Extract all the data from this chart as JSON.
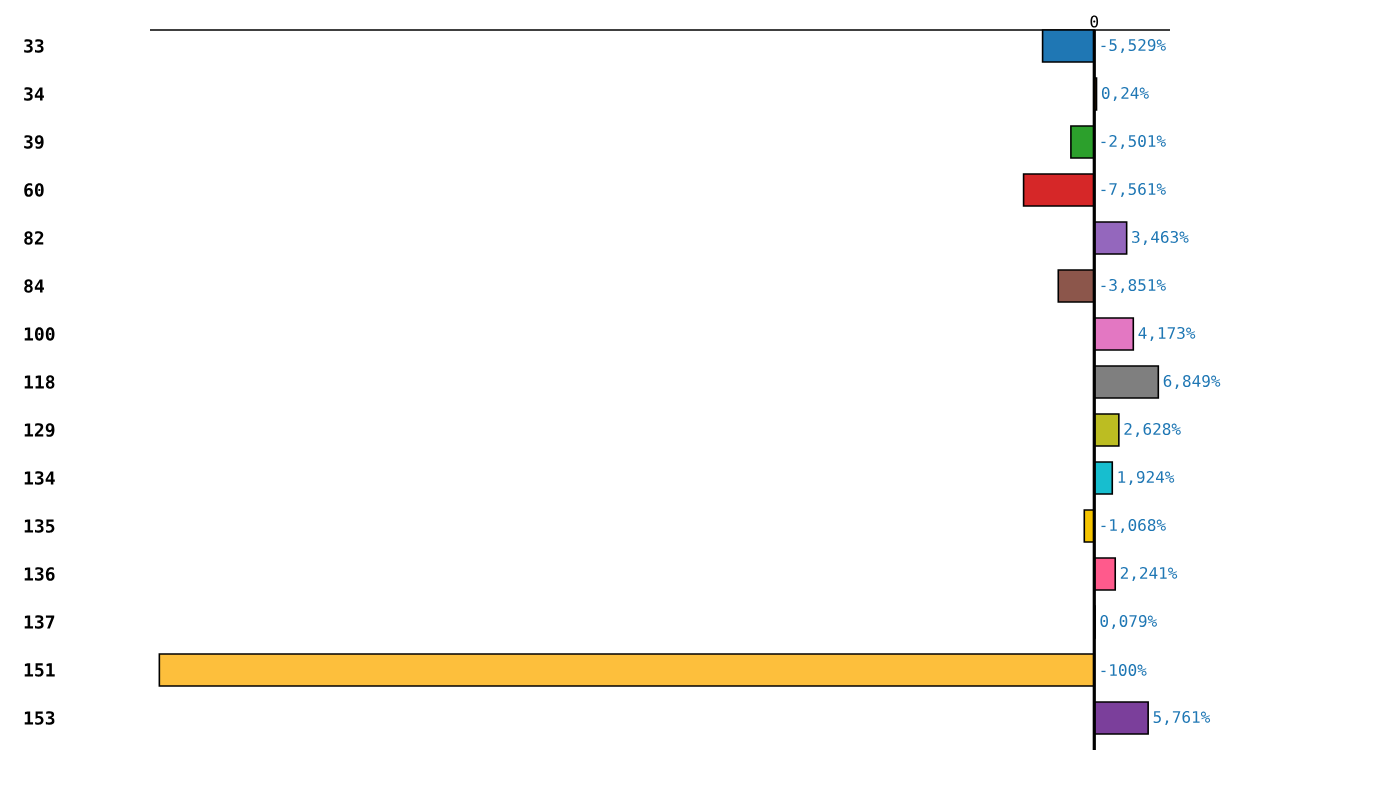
{
  "chart_data": {
    "type": "bar",
    "orientation": "horizontal",
    "categories": [
      "33",
      "34",
      "39",
      "60",
      "82",
      "84",
      "100",
      "118",
      "129",
      "134",
      "135",
      "136",
      "137",
      "151",
      "153"
    ],
    "values": [
      -5.529,
      0.24,
      -2.501,
      -7.561,
      3.463,
      -3.851,
      4.173,
      6.849,
      2.628,
      1.924,
      -1.068,
      2.241,
      0.079,
      -100,
      5.761
    ],
    "value_labels": [
      "-5,529%",
      "0,24%",
      "-2,501%",
      "-7,561%",
      "3,463%",
      "-3,851%",
      "4,173%",
      "6,849%",
      "2,628%",
      "1,924%",
      "-1,068%",
      "2,241%",
      "0,079%",
      "-100%",
      "5,761%"
    ],
    "colors": [
      "#1f77b4",
      "#ff7f0e",
      "#2ca02c",
      "#d62728",
      "#9467bd",
      "#8c564b",
      "#e377c2",
      "#7f7f7f",
      "#bcbd22",
      "#17becf",
      "#f5c400",
      "#ff5a8c",
      "#aec7e8",
      "#fdbf3c",
      "#7b3f9b"
    ],
    "xlim": [
      -101,
      8.1
    ],
    "annotations": [
      {
        "text": "0",
        "x": 0
      }
    ]
  }
}
